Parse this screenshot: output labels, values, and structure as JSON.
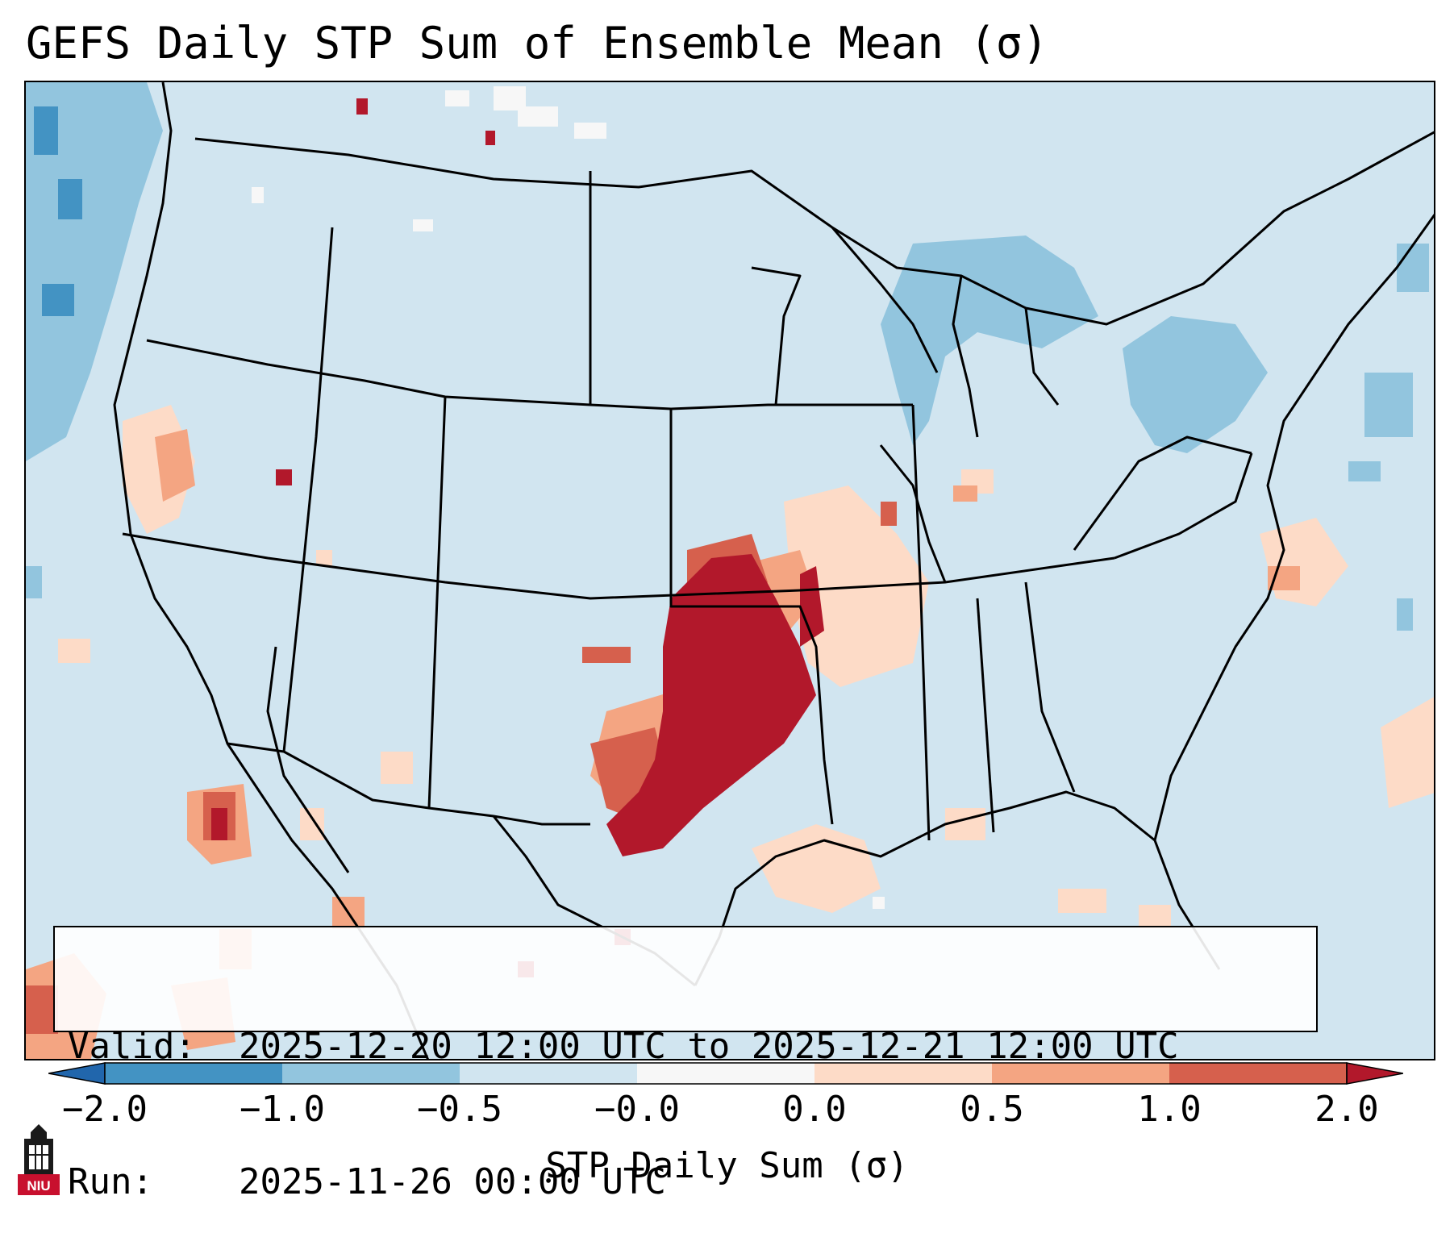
{
  "title": "GEFS Daily STP Sum of Ensemble Mean (σ)",
  "map": {
    "region": "Continental United States",
    "colors": {
      "background": "#d1e5f0",
      "strong_negative": "#4393c3",
      "negative": "#92c5de",
      "near_zero": "#f7f7f7",
      "slight_positive": "#fddbc7",
      "positive": "#f4a582",
      "strong_positive": "#d6604d",
      "extreme_positive": "#b2182b",
      "borders": "#000000"
    }
  },
  "info": {
    "valid_label": "Valid:",
    "valid_value": "2025-12-20 12:00 UTC to 2025-12-21 12:00 UTC",
    "run_label": "Run:",
    "run_value": "2025-11-26 00:00 UTC"
  },
  "colorbar": {
    "label": "STP Daily Sum (σ)",
    "ticks": [
      "−2.0",
      "−1.0",
      "−0.5",
      "−0.0",
      "0.0",
      "0.5",
      "1.0",
      "2.0"
    ],
    "colors": [
      "#2166ac",
      "#4393c3",
      "#92c5de",
      "#d1e5f0",
      "#f7f7f7",
      "#fddbc7",
      "#f4a582",
      "#d6604d",
      "#b2182b"
    ]
  },
  "logo": {
    "text": "NIU",
    "icon": "niu-tower-icon"
  }
}
